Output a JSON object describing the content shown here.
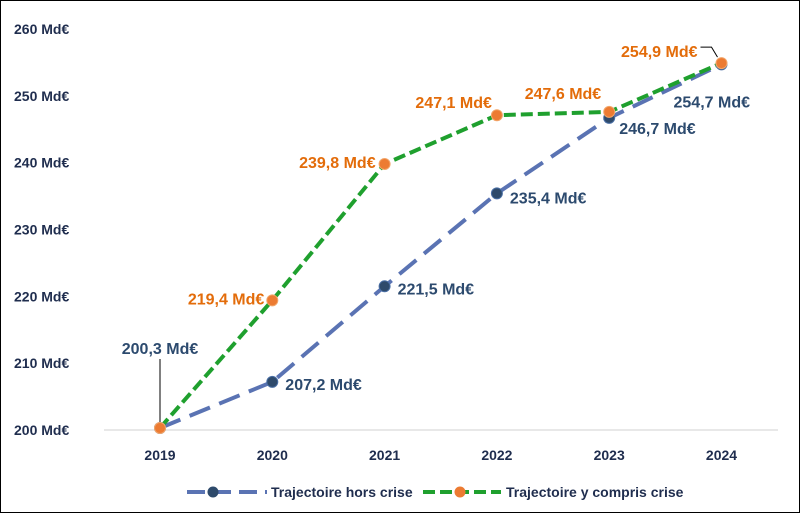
{
  "chart_data": {
    "type": "line",
    "categories": [
      "2019",
      "2020",
      "2021",
      "2022",
      "2023",
      "2024"
    ],
    "ylim": [
      200,
      260
    ],
    "yticks": [
      "200 Md€",
      "210 Md€",
      "220 Md€",
      "230 Md€",
      "240 Md€",
      "250 Md€",
      "260 Md€"
    ],
    "grid": false,
    "legend_position": "bottom",
    "series": [
      {
        "name": "Trajectoire hors crise",
        "values": [
          200.3,
          207.2,
          221.5,
          235.4,
          246.7,
          254.7
        ],
        "labels": [
          "",
          "207,2 Md€",
          "221,5 Md€",
          "235,4 Md€",
          "246,7 Md€",
          "254,7 Md€"
        ],
        "color": "#5a73b3",
        "marker_color": "#2e4a6b",
        "style": "dashed"
      },
      {
        "name": "Trajectoire y compris crise",
        "values": [
          200.3,
          219.4,
          239.8,
          247.1,
          247.6,
          254.9
        ],
        "labels": [
          "",
          "219,4 Md€",
          "239,8 Md€",
          "247,1 Md€",
          "247,6 Md€",
          "254,9 Md€"
        ],
        "color": "#1fa02e",
        "marker_color": "#ec7b32",
        "style": "dashed"
      }
    ],
    "shared_label": "200,3 Md€",
    "label_colors": {
      "hors_crise": "#2c4a6e",
      "y_compris_crise": "#e36c0a"
    }
  }
}
